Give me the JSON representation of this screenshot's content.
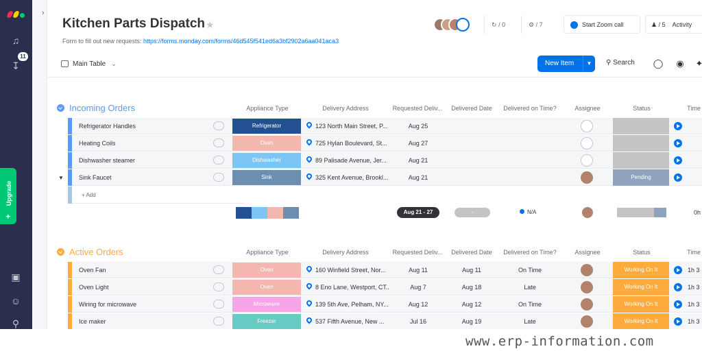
{
  "colors": {
    "nav": "#292f4c",
    "blue": "#0073ea",
    "upgrade": "#00c875",
    "incoming": "#579bfc",
    "active": "#fdab3d",
    "refrigerator": "#225091",
    "oven": "#f4b7b0",
    "dishwasher": "#7cc5f7",
    "sink": "#6c8eb1",
    "microwave": "#f7a5e9",
    "freezer": "#66ccc3",
    "working": "#fdab3d",
    "empty_status": "#c4c4c4",
    "pending": "#8fa3bf"
  },
  "nav": {
    "notifications_badge": "11",
    "upgrade_label": "Upgrade"
  },
  "header": {
    "title": "Kitchen Parts Dispatch",
    "desc_prefix": "Form to fill out new requests: ",
    "desc_link": "https://forms.monday.com/forms/46d545f541ed6a3bf2902a6aa041aca3",
    "activity_count": "/ 0",
    "integrations_count": "/ 7",
    "zoom_label": "Start Zoom call",
    "people_label": "/ 5",
    "activity_label": "Activity"
  },
  "toolbar": {
    "view_label": "Main Table",
    "new_item_label": "New Item",
    "search_label": "Search"
  },
  "columns": [
    "Appliance Type",
    "Delivery Address",
    "Requested Deliv...",
    "Delivered Date",
    "Delivered on Time?",
    "Assignee",
    "Status",
    "Time"
  ],
  "groups": [
    {
      "title": "Incoming Orders",
      "rows": [
        {
          "name": "Refrigerator Handles",
          "appliance": "Refrigerator",
          "appliance_color": "#225091",
          "address": "123 North Main Street, P...",
          "requested": "Aug 25",
          "delivered": "",
          "on_time": "",
          "status": "",
          "status_color": "#c4c4c4",
          "assigned": false,
          "time": ""
        },
        {
          "name": "Heating Coils",
          "appliance": "Oven",
          "appliance_color": "#f4b7b0",
          "address": "725 Hylan Boulevard, St...",
          "requested": "Aug 27",
          "delivered": "",
          "on_time": "",
          "status": "",
          "status_color": "#c4c4c4",
          "assigned": false,
          "time": ""
        },
        {
          "name": "Dishwasher steamer",
          "appliance": "Dishwasher",
          "appliance_color": "#7cc5f7",
          "address": "89 Palisade Avenue, Jer...",
          "requested": "Aug 21",
          "delivered": "",
          "on_time": "",
          "status": "",
          "status_color": "#c4c4c4",
          "assigned": false,
          "time": ""
        },
        {
          "name": "Sink Faucet",
          "appliance": "Sink",
          "appliance_color": "#6c8eb1",
          "address": "325 Kent Avenue, Brookl...",
          "requested": "Aug 21",
          "delivered": "",
          "on_time": "",
          "status": "Pending",
          "status_color": "#8fa3bf",
          "assigned": true,
          "time": ""
        }
      ],
      "add_label": "+ Add",
      "summary": {
        "date_range": "Aug 21 - 27",
        "delivered": "-",
        "on_time": "N/A",
        "time": "0h"
      }
    },
    {
      "title": "Active Orders",
      "rows": [
        {
          "name": "Oven Fan",
          "appliance": "Oven",
          "appliance_color": "#f4b7b0",
          "address": "160 Winfield Street, Nor...",
          "requested": "Aug 11",
          "delivered": "Aug 11",
          "on_time": "On Time",
          "status": "Working On It",
          "status_color": "#fdab3d",
          "assigned": true,
          "time": "1h 3"
        },
        {
          "name": "Oven Light",
          "appliance": "Oven",
          "appliance_color": "#f4b7b0",
          "address": "8 Eno Lane, Westport, CT...",
          "requested": "Aug 7",
          "delivered": "Aug 18",
          "on_time": "Late",
          "status": "Working On It",
          "status_color": "#fdab3d",
          "assigned": true,
          "time": "1h 3"
        },
        {
          "name": "Wiring for microwave",
          "appliance": "Microwave",
          "appliance_color": "#f7a5e9",
          "address": "139 5th Ave, Pelham, NY...",
          "requested": "Aug 12",
          "delivered": "Aug 12",
          "on_time": "On Time",
          "status": "Working On It",
          "status_color": "#fdab3d",
          "assigned": true,
          "time": "1h 3"
        },
        {
          "name": "Ice maker",
          "appliance": "Freezer",
          "appliance_color": "#66ccc3",
          "address": "537 Fifth Avenue, New ...",
          "requested": "Jul 16",
          "delivered": "Aug 19",
          "on_time": "Late",
          "status": "Working On It",
          "status_color": "#fdab3d",
          "assigned": true,
          "time": "1h 3"
        }
      ]
    }
  ],
  "watermark": "www.erp-information.com"
}
